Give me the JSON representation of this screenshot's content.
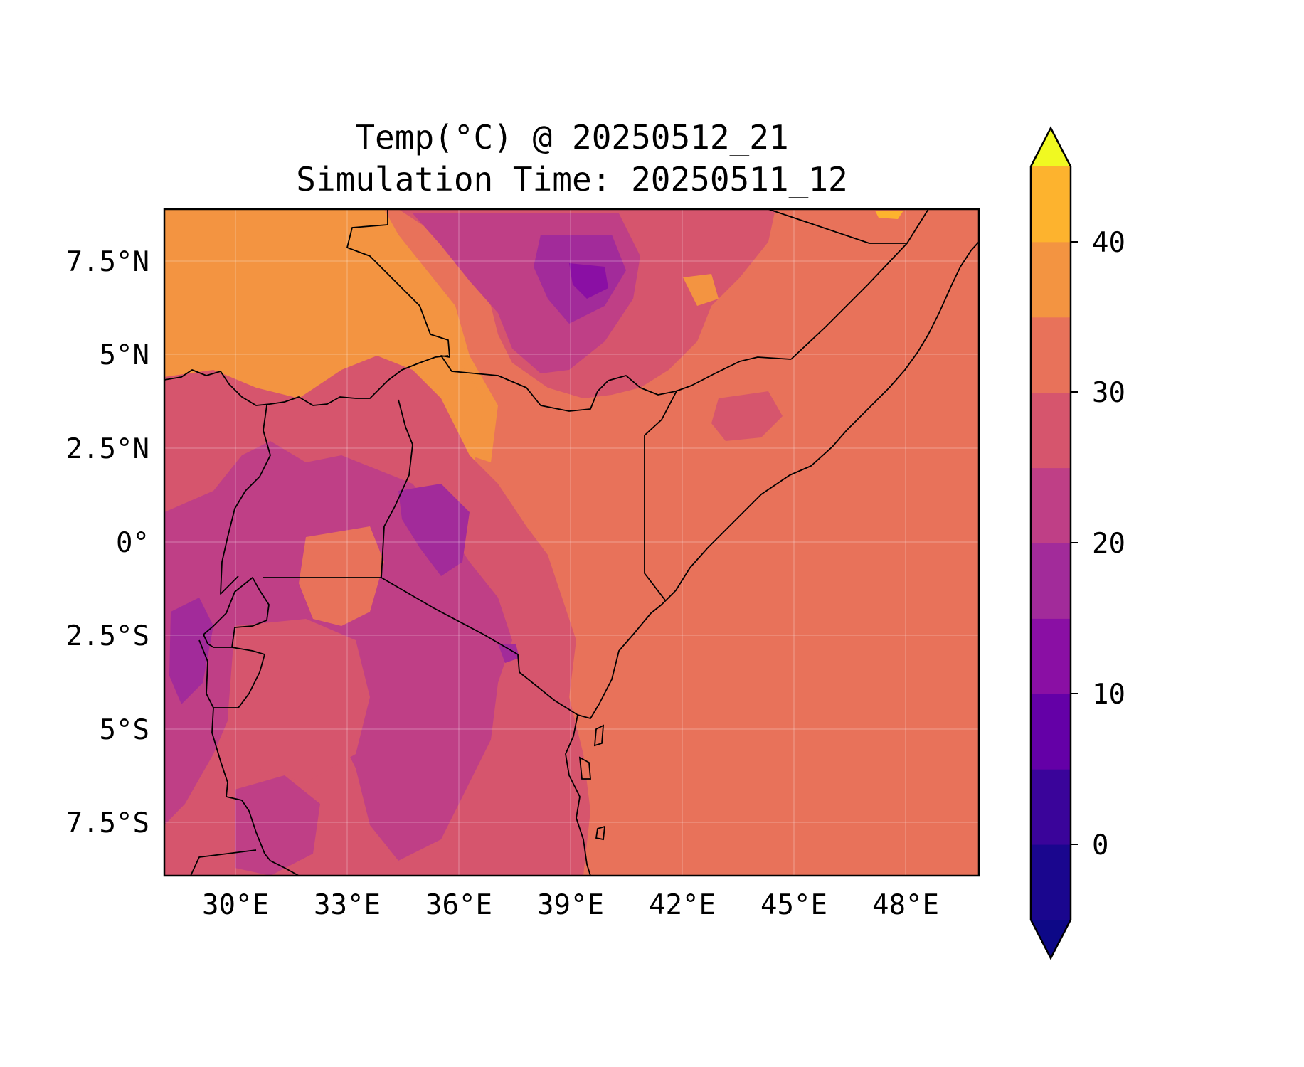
{
  "title": {
    "line1": "Temp(°C) @ 20250512_21",
    "line2": "Simulation Time: 20250511_12"
  },
  "map": {
    "x_tick_labels": [
      "30°E",
      "33°E",
      "36°E",
      "39°E",
      "42°E",
      "45°E",
      "48°E"
    ],
    "y_tick_labels": [
      "7.5°N",
      "5°N",
      "2.5°N",
      "0°",
      "2.5°S",
      "5°S",
      "7.5°S"
    ],
    "lon_ticks": [
      30,
      33,
      36,
      39,
      42,
      45,
      48
    ],
    "lat_ticks": [
      7.5,
      5,
      2.5,
      0,
      -2.5,
      -5,
      -7.5
    ],
    "lon_range": [
      28.2,
      50.0
    ],
    "lat_range": [
      -8.9,
      8.9
    ],
    "gridlines": true,
    "field_colors": {
      "ocean_lowland_25_30": "#e8725a",
      "warm_30_35": "#f39441",
      "mid_20_25": "#d6556d",
      "cool_15_20": "#bf3f86",
      "cold_10_15": "#a22b9a",
      "colder_5_10": "#8a0fa4",
      "hot_35_40": "#fdb32e"
    }
  },
  "colorbar": {
    "tick_labels": [
      "0",
      "10",
      "20",
      "30",
      "40"
    ],
    "ticks": [
      0,
      10,
      20,
      30,
      40
    ],
    "range": [
      -5,
      45
    ],
    "extend": "both",
    "levels": [
      -5,
      0,
      5,
      10,
      15,
      20,
      25,
      30,
      35,
      40,
      45
    ],
    "colors": [
      "#1a068e",
      "#3a049a",
      "#6400a7",
      "#8a0fa4",
      "#a22b9a",
      "#bf3f86",
      "#d6556d",
      "#e8725a",
      "#f39441",
      "#fdb32e",
      "#f3e52b"
    ],
    "under_color": "#0d0887",
    "over_color": "#f0f921"
  }
}
